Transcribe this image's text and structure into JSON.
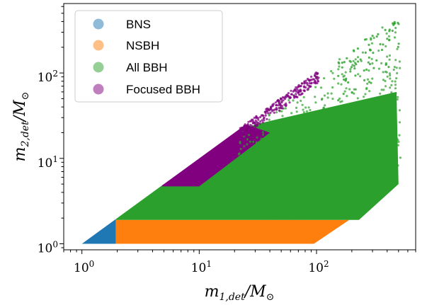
{
  "chart_data": {
    "type": "scatter",
    "xscale": "log",
    "yscale": "log",
    "xlim": [
      0.7,
      700
    ],
    "ylim": [
      0.85,
      650
    ],
    "xlabel": {
      "main": "m",
      "sub": "1,det",
      "tail": "/M",
      "sun": "⊙"
    },
    "ylabel": {
      "main": "m",
      "sub": "2,det",
      "tail": "/M",
      "sun": "⊙"
    },
    "x_ticks": [
      {
        "value": 1,
        "base": "10",
        "exp": "0"
      },
      {
        "value": 10,
        "base": "10",
        "exp": "1"
      },
      {
        "value": 100,
        "base": "10",
        "exp": "2"
      }
    ],
    "y_ticks": [
      {
        "value": 1,
        "base": "10",
        "exp": "0"
      },
      {
        "value": 10,
        "base": "10",
        "exp": "1"
      },
      {
        "value": 100,
        "base": "10",
        "exp": "2"
      }
    ],
    "legend_position": "top-left",
    "series": [
      {
        "name": "BNS",
        "color": "#1f77b4",
        "legend_color": "#8fbbd9",
        "region_m1": [
          1,
          2
        ],
        "region_m2": [
          1,
          2
        ],
        "region_polygon": [
          [
            1,
            1
          ],
          [
            1.95,
            1
          ],
          [
            1.95,
            1.95
          ]
        ]
      },
      {
        "name": "NSBH",
        "color": "#ff7f0e",
        "legend_color": "#ffbf86",
        "region_m1": [
          2,
          190
        ],
        "region_m2": [
          1,
          1.9
        ],
        "region_polygon": [
          [
            1.95,
            1
          ],
          [
            95,
            1
          ],
          [
            190,
            1.9
          ],
          [
            1.95,
            1.9
          ]
        ]
      },
      {
        "name": "All BBH",
        "color": "#2ca02c",
        "legend_color": "#95cf95",
        "region_m1": [
          2,
          500
        ],
        "region_m2": [
          1.9,
          500
        ],
        "region_polygon": [
          [
            1.95,
            1.9
          ],
          [
            230,
            1.9
          ],
          [
            500,
            5
          ],
          [
            480,
            60
          ],
          [
            30,
            25
          ],
          [
            10,
            9
          ],
          [
            4.8,
            4.8
          ],
          [
            1.95,
            1.95
          ]
        ]
      },
      {
        "name": "Focused BBH",
        "color": "#800080",
        "legend_color": "#bf7fbf",
        "region_m1": [
          5,
          100
        ],
        "region_m2": [
          4.7,
          100
        ],
        "region_polygon": [
          [
            4.8,
            4.7
          ],
          [
            10,
            4.7
          ],
          [
            40,
            20
          ],
          [
            25,
            25
          ],
          [
            4.8,
            4.8
          ]
        ]
      }
    ]
  }
}
